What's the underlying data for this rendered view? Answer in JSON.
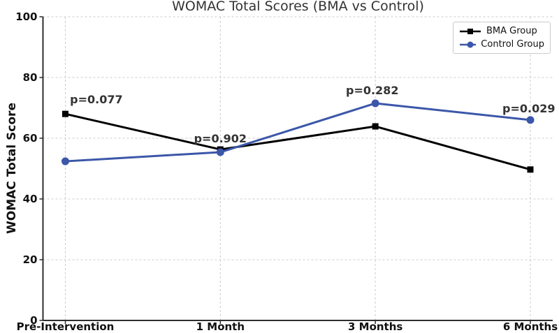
{
  "chart_data": {
    "type": "line",
    "title": "WOMAC Total Scores (BMA vs Control)",
    "ylabel": "WOMAC Total Score",
    "xlabel": "",
    "categories": [
      "Pre-Intervention",
      "1 Month",
      "3 Months",
      "6 Months"
    ],
    "ylim": [
      0,
      100
    ],
    "yticks": [
      0,
      20,
      40,
      60,
      80,
      100
    ],
    "grid": true,
    "legend_position": "upper-right",
    "series": [
      {
        "name": "BMA Group",
        "color": "#000000",
        "marker": "square",
        "values": [
          68.0,
          56.3,
          63.9,
          49.7
        ]
      },
      {
        "name": "Control Group",
        "color": "#3b57a9",
        "marker": "circle",
        "values": [
          52.4,
          55.4,
          71.5,
          66.0
        ]
      }
    ],
    "annotations": [
      {
        "text": "p=0.077",
        "x": 0.2,
        "y": 72.6
      },
      {
        "text": "p=0.902",
        "x": 1.0,
        "y": 59.8
      },
      {
        "text": "p=0.282",
        "x": 1.98,
        "y": 75.6
      },
      {
        "text": "p=0.029",
        "x": 2.99,
        "y": 69.7
      }
    ],
    "colors": {
      "grid": "#cccccc",
      "spine": "#2e2e2e",
      "tick": "#2e2e2e",
      "title": "#333333",
      "annotation": "#333333",
      "tick_label": "#111111",
      "bma_line": "#000000",
      "control_line": "#3b57a9"
    }
  }
}
